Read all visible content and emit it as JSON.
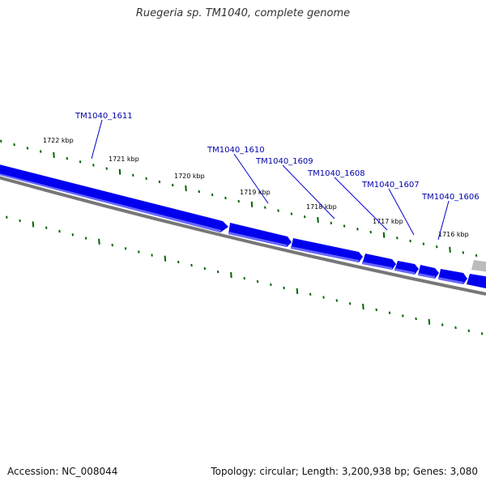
{
  "title": "Ruegeria sp. TM1040, complete genome",
  "footer": {
    "accession": "Accession: NC_008044",
    "summary": "Topology: circular; Length: 3,200,938 bp; Genes: 3,080"
  },
  "colors": {
    "gene": "#0000ee",
    "gene_light": "#6666ff",
    "grey_gene": "#bbbbbb",
    "backbone": "#777777",
    "tick": "#006600",
    "label": "#0000aa"
  },
  "kbp_ticks": [
    "1722 kbp",
    "1721 kbp",
    "1720 kbp",
    "1719 kbp",
    "1718 kbp",
    "1717 kbp",
    "1716 kbp"
  ],
  "genes": [
    {
      "label": "TM1040_1611"
    },
    {
      "label": "TM1040_1610"
    },
    {
      "label": "TM1040_1609"
    },
    {
      "label": "TM1040_1608"
    },
    {
      "label": "TM1040_1607"
    },
    {
      "label": "TM1040_1606"
    }
  ]
}
